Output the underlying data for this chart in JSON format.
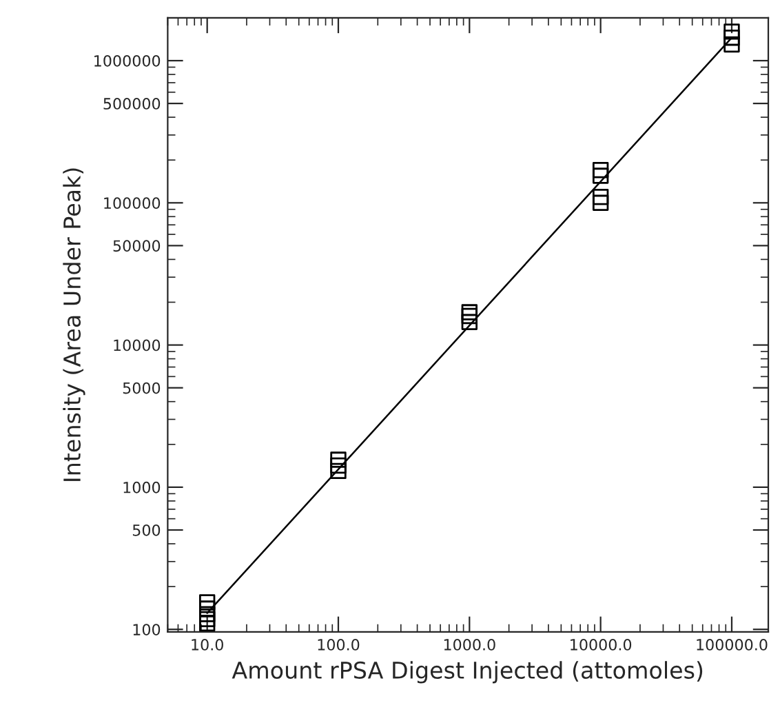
{
  "chart_data": {
    "type": "scatter",
    "xlabel": "Amount rPSA Digest Injected (attomoles)",
    "ylabel": "Intensity (Area Under Peak)",
    "log": "xy",
    "marker": "square",
    "grid": false,
    "legend": false,
    "xlim": [
      5,
      190000
    ],
    "ylim": [
      96,
      2000000
    ],
    "xticks": [
      {
        "value": 10,
        "label": "10.0"
      },
      {
        "value": 100,
        "label": "100.0"
      },
      {
        "value": 1000,
        "label": "1000.0"
      },
      {
        "value": 10000,
        "label": "10000.0"
      },
      {
        "value": 100000,
        "label": "100000.0"
      }
    ],
    "yticks": [
      100,
      500,
      1000,
      5000,
      10000,
      50000,
      100000,
      500000,
      1000000
    ],
    "series": [
      {
        "color": "#000000",
        "x": [
          10,
          10,
          10,
          10,
          10,
          100,
          100,
          100,
          1000,
          1000,
          1000,
          10000,
          10000,
          10000,
          10000,
          100000,
          100000,
          100000
        ],
        "values": [
          155,
          140,
          128,
          118,
          110,
          1560,
          1420,
          1300,
          17000,
          16000,
          14500,
          170000,
          155000,
          110000,
          100000,
          1600000,
          1450000,
          1300000
        ]
      },
      {
        "type": "line",
        "color": "#000000",
        "marker": "none",
        "x": [
          10,
          100000
        ],
        "values": [
          130,
          1450000
        ]
      }
    ]
  }
}
